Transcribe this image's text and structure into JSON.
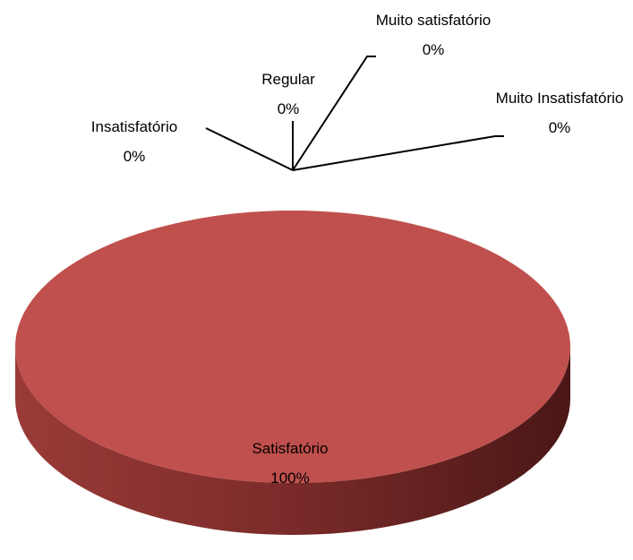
{
  "chart_data": {
    "type": "pie3d",
    "categories": [
      "Muito satisfatório",
      "Satisfatório",
      "Regular",
      "Insatisfatório",
      "Muito Insatisfatório"
    ],
    "values": [
      0,
      100,
      0,
      0,
      0
    ],
    "value_labels": [
      "0%",
      "100%",
      "0%",
      "0%",
      "0%"
    ],
    "colors": [
      "#4f81bd",
      "#c0504d",
      "#9bbb59",
      "#8064a2",
      "#4bacc6"
    ]
  }
}
